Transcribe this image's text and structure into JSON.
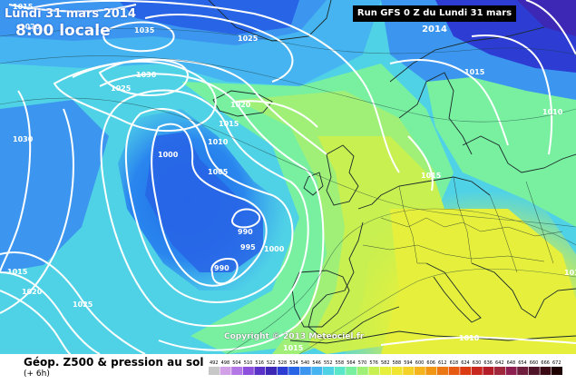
{
  "header": {
    "date_label": "Lundi 31 mars 2014",
    "time_label": "8:00 locale",
    "run_label": "Run GFS 0 Z du Lundi 31 mars 2014"
  },
  "copyright": "Copyright © 2013 Meteociel.fr",
  "footer": {
    "title": "Géop. Z500 & pression au sol",
    "subtitle": "(+ 6h)"
  },
  "isobar_labels": [
    "1015",
    "1020",
    "1035",
    "1025",
    "1030",
    "1025",
    "1020",
    "1015",
    "1010",
    "1030",
    "1000",
    "1005",
    "990",
    "995",
    "1000",
    "990",
    "1015",
    "1020",
    "1025",
    "1015",
    "1015",
    "1010",
    "1015",
    "1010",
    "1015"
  ],
  "legend_values": [
    "492",
    "498",
    "504",
    "510",
    "516",
    "522",
    "528",
    "534",
    "540",
    "546",
    "552",
    "558",
    "564",
    "570",
    "576",
    "582",
    "588",
    "594",
    "600",
    "606",
    "612",
    "618",
    "624",
    "630",
    "636",
    "642",
    "648",
    "654",
    "660",
    "666",
    "672"
  ],
  "legend_colors": [
    "#c8c8c8",
    "#d2a0e6",
    "#b478e6",
    "#8c50dc",
    "#5a32c8",
    "#3c28b4",
    "#2d3cd2",
    "#2864e6",
    "#3c96f0",
    "#46b4f0",
    "#50d2e6",
    "#5ae6c8",
    "#78f0a0",
    "#a0f078",
    "#c8f050",
    "#e6f03c",
    "#f0e632",
    "#f5d228",
    "#f5b41e",
    "#f09614",
    "#eb7814",
    "#e65a14",
    "#dc3c14",
    "#c8281e",
    "#b41e28",
    "#a0283c",
    "#8c1e50",
    "#6e1e3c",
    "#501428",
    "#3c0a14",
    "#1e0000"
  ]
}
